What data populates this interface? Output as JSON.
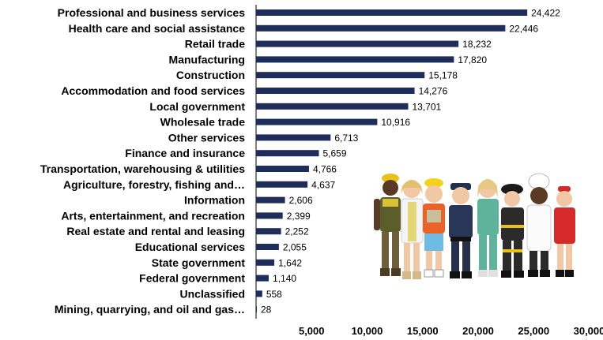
{
  "chart_data": {
    "type": "bar",
    "orientation": "horizontal",
    "categories": [
      "Professional and business services",
      "Health care and social assistance",
      "Retail trade",
      "Manufacturing",
      "Construction",
      "Accommodation and food services",
      "Local government",
      "Wholesale trade",
      "Other services",
      "Finance and insurance",
      "Transportation, warehousing & utilities",
      "Agriculture, forestry, fishing and…",
      "Information",
      "Arts, entertainment, and recreation",
      "Real estate and rental and leasing",
      "Educational services",
      "State government",
      "Federal government",
      "Unclassified",
      "Mining, quarrying, and oil and gas…"
    ],
    "values": [
      24422,
      22446,
      18232,
      17820,
      15178,
      14276,
      13701,
      10916,
      6713,
      5659,
      4766,
      4637,
      2606,
      2399,
      2252,
      2055,
      1642,
      1140,
      558,
      28
    ],
    "value_labels": [
      "24,422",
      "22,446",
      "18,232",
      "17,820",
      "15,178",
      "14,276",
      "13,701",
      "10,916",
      "6,713",
      "5,659",
      "4,766",
      "4,637",
      "2,606",
      "2,399",
      "2,252",
      "2,055",
      "1,642",
      "1,140",
      "558",
      "28"
    ],
    "xlim": [
      0,
      30000
    ],
    "xticks": [
      5000,
      10000,
      15000,
      20000,
      25000,
      30000
    ],
    "xtick_labels": [
      "5,000",
      "10,000",
      "15,000",
      "20,000",
      "25,000",
      "30,000"
    ],
    "title": "",
    "xlabel": "",
    "ylabel": "",
    "grid": false,
    "legend": "none",
    "bar_color": "#1f2d5a"
  },
  "illustration": {
    "description_icon": "group-of-children-in-career-costumes"
  }
}
